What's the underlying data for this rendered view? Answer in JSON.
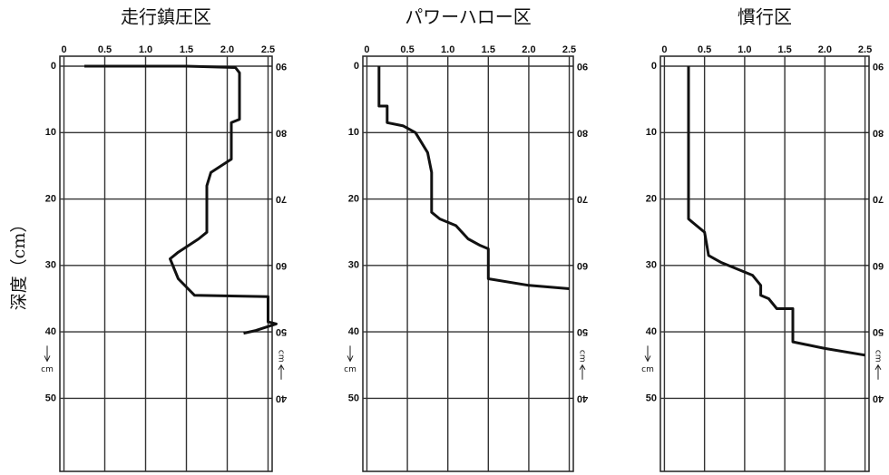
{
  "y_label": "深度（cm）",
  "chart_data": [
    {
      "type": "line",
      "title": "走行鎮圧区",
      "unit": "cm",
      "x": [
        0.25,
        1.5,
        2.1,
        2.15,
        2.15,
        2.05,
        2.05,
        1.8,
        1.75,
        1.75,
        1.65,
        1.4,
        1.3,
        1.4,
        1.6,
        2.5,
        2.5,
        2.6,
        2.35,
        2.2
      ],
      "series": [
        {
          "color": "#111111",
          "values": [
            0,
            0,
            0.2,
            1,
            8,
            8.5,
            14,
            16,
            18,
            25,
            26,
            28,
            29,
            32,
            34.5,
            34.7,
            38.5,
            38.8,
            39.8,
            40.2
          ]
        }
      ],
      "xlim": [
        -0.05,
        2.55
      ],
      "xticks": [
        0,
        0.5,
        {
          "value": 1,
          "label": "1.0"
        },
        1.5,
        {
          "value": 2,
          "label": "2.0"
        },
        2.5
      ],
      "ylim": [
        -1.5,
        61
      ],
      "yticks": [
        0,
        10,
        20,
        30,
        40,
        50
      ],
      "y2lim": [
        91.5,
        29
      ],
      "y2ticks": [
        90,
        80,
        70,
        60,
        50,
        40
      ],
      "grid": true
    },
    {
      "type": "line",
      "title": "パワーハロー区",
      "unit": "cm",
      "x": [
        0.15,
        0.15,
        0.25,
        0.25,
        0.45,
        0.6,
        0.75,
        0.8,
        0.8,
        0.9,
        1.1,
        1.25,
        1.4,
        1.5,
        1.5,
        2.0,
        2.5
      ],
      "series": [
        {
          "color": "#111111",
          "values": [
            0,
            6,
            6,
            8.5,
            9,
            10,
            13,
            16,
            22,
            23,
            24,
            26,
            27,
            27.5,
            32,
            33,
            33.5
          ]
        }
      ],
      "xlim": [
        -0.05,
        2.55
      ],
      "xticks": [
        0,
        0.5,
        {
          "value": 1,
          "label": "1.0"
        },
        1.5,
        {
          "value": 2,
          "label": "2.0"
        },
        2.5
      ],
      "ylim": [
        -1.5,
        61
      ],
      "yticks": [
        0,
        10,
        20,
        30,
        40,
        50
      ],
      "y2lim": [
        91.5,
        29
      ],
      "y2ticks": [
        90,
        80,
        70,
        60,
        50,
        40
      ],
      "grid": true
    },
    {
      "type": "line",
      "title": "慣行区",
      "unit": "cm",
      "x": [
        0.3,
        0.3,
        0.4,
        0.5,
        0.55,
        0.7,
        0.9,
        1.1,
        1.2,
        1.2,
        1.3,
        1.4,
        1.6,
        1.6,
        2.0,
        2.5
      ],
      "series": [
        {
          "color": "#111111",
          "values": [
            0,
            23,
            24,
            25,
            28.5,
            29.5,
            30.5,
            31.5,
            33,
            34.5,
            35,
            36.5,
            36.5,
            41.5,
            42.5,
            43.5
          ]
        }
      ],
      "xlim": [
        -0.05,
        2.55
      ],
      "xticks": [
        0,
        0.5,
        {
          "value": 1,
          "label": "1.0"
        },
        1.5,
        {
          "value": 2,
          "label": "2.0"
        },
        2.5
      ],
      "ylim": [
        -1.5,
        61
      ],
      "yticks": [
        0,
        10,
        20,
        30,
        40,
        50
      ],
      "y2lim": [
        91.5,
        29
      ],
      "y2ticks": [
        90,
        80,
        70,
        60,
        50,
        40
      ],
      "grid": true
    }
  ]
}
